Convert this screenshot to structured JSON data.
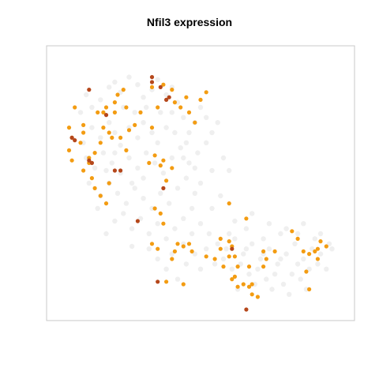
{
  "chart_data": {
    "type": "scatter",
    "title": "Nfil3 expression",
    "xlabel": "",
    "ylabel": "",
    "grid": false,
    "legend": "none",
    "xlim": [
      0,
      100
    ],
    "ylim": [
      0,
      100
    ],
    "colors": {
      "background_cells": "#e9e9e9",
      "low": "#f39c12",
      "high": "#b5471b",
      "frame": "#c8c8c8"
    },
    "series": [
      {
        "level": "none",
        "points": [
          [
            10,
            85
          ],
          [
            12,
            80
          ],
          [
            15,
            83
          ],
          [
            18,
            88
          ],
          [
            20,
            90
          ],
          [
            22,
            86
          ],
          [
            25,
            92
          ],
          [
            28,
            89
          ],
          [
            30,
            84
          ],
          [
            33,
            87
          ],
          [
            35,
            91
          ],
          [
            38,
            85
          ],
          [
            40,
            88
          ],
          [
            12,
            72
          ],
          [
            15,
            68
          ],
          [
            18,
            74
          ],
          [
            20,
            70
          ],
          [
            22,
            65
          ],
          [
            25,
            72
          ],
          [
            28,
            68
          ],
          [
            30,
            74
          ],
          [
            33,
            70
          ],
          [
            35,
            66
          ],
          [
            38,
            72
          ],
          [
            40,
            78
          ],
          [
            42,
            82
          ],
          [
            44,
            76
          ],
          [
            46,
            70
          ],
          [
            48,
            74
          ],
          [
            50,
            80
          ],
          [
            52,
            76
          ],
          [
            10,
            60
          ],
          [
            13,
            56
          ],
          [
            16,
            62
          ],
          [
            19,
            58
          ],
          [
            22,
            54
          ],
          [
            25,
            60
          ],
          [
            28,
            56
          ],
          [
            31,
            62
          ],
          [
            34,
            58
          ],
          [
            37,
            54
          ],
          [
            40,
            60
          ],
          [
            43,
            64
          ],
          [
            46,
            58
          ],
          [
            49,
            62
          ],
          [
            52,
            66
          ],
          [
            54,
            70
          ],
          [
            56,
            74
          ],
          [
            15,
            45
          ],
          [
            18,
            50
          ],
          [
            21,
            46
          ],
          [
            24,
            42
          ],
          [
            27,
            48
          ],
          [
            30,
            44
          ],
          [
            33,
            40
          ],
          [
            36,
            46
          ],
          [
            39,
            42
          ],
          [
            42,
            48
          ],
          [
            45,
            52
          ],
          [
            48,
            46
          ],
          [
            20,
            35
          ],
          [
            23,
            38
          ],
          [
            26,
            32
          ],
          [
            29,
            36
          ],
          [
            32,
            30
          ],
          [
            35,
            34
          ],
          [
            38,
            28
          ],
          [
            41,
            32
          ],
          [
            44,
            36
          ],
          [
            47,
            40
          ],
          [
            50,
            34
          ],
          [
            53,
            30
          ],
          [
            56,
            26
          ],
          [
            59,
            24
          ],
          [
            62,
            28
          ],
          [
            65,
            22
          ],
          [
            68,
            26
          ],
          [
            71,
            20
          ],
          [
            74,
            24
          ],
          [
            77,
            18
          ],
          [
            80,
            22
          ],
          [
            83,
            26
          ],
          [
            86,
            20
          ],
          [
            89,
            24
          ],
          [
            92,
            22
          ],
          [
            95,
            26
          ],
          [
            58,
            20
          ],
          [
            61,
            16
          ],
          [
            64,
            18
          ],
          [
            67,
            14
          ],
          [
            70,
            16
          ],
          [
            73,
            12
          ],
          [
            76,
            14
          ],
          [
            79,
            10
          ],
          [
            82,
            14
          ],
          [
            85,
            12
          ],
          [
            88,
            16
          ],
          [
            91,
            18
          ],
          [
            60,
            30
          ],
          [
            66,
            32
          ],
          [
            72,
            28
          ],
          [
            78,
            30
          ],
          [
            84,
            30
          ],
          [
            90,
            28
          ],
          [
            35,
            20
          ],
          [
            38,
            16
          ],
          [
            40,
            22
          ],
          [
            42,
            12
          ],
          [
            45,
            18
          ],
          [
            48,
            22
          ],
          [
            50,
            16
          ],
          [
            52,
            24
          ],
          [
            55,
            18
          ],
          [
            8,
            78
          ],
          [
            9,
            66
          ],
          [
            11,
            50
          ],
          [
            14,
            40
          ],
          [
            17,
            30
          ],
          [
            26,
            25
          ],
          [
            32,
            24
          ],
          [
            44,
            26
          ],
          [
            47,
            30
          ],
          [
            54,
            40
          ],
          [
            57,
            45
          ],
          [
            60,
            55
          ],
          [
            58,
            60
          ],
          [
            54,
            55
          ],
          [
            50,
            50
          ],
          [
            48,
            56
          ],
          [
            44,
            60
          ],
          [
            30,
            52
          ],
          [
            26,
            50
          ],
          [
            23,
            80
          ],
          [
            27,
            78
          ],
          [
            31,
            80
          ],
          [
            36,
            78
          ],
          [
            41,
            70
          ],
          [
            45,
            66
          ],
          [
            20,
            62
          ],
          [
            17,
            55
          ],
          [
            62,
            35
          ],
          [
            68,
            38
          ],
          [
            74,
            34
          ],
          [
            80,
            32
          ],
          [
            86,
            34
          ],
          [
            92,
            30
          ],
          [
            96,
            24
          ],
          [
            94,
            16
          ],
          [
            87,
            8
          ],
          [
            81,
            6
          ],
          [
            75,
            8
          ],
          [
            69,
            10
          ],
          [
            63,
            8
          ],
          [
            66,
            24
          ],
          [
            72,
            22
          ],
          [
            78,
            20
          ],
          [
            84,
            18
          ]
        ]
      },
      {
        "level": "low",
        "points": [
          [
            4,
            63
          ],
          [
            5,
            68
          ],
          [
            4,
            72
          ],
          [
            6,
            80
          ],
          [
            5,
            59
          ],
          [
            8,
            66
          ],
          [
            9,
            70
          ],
          [
            9,
            55
          ],
          [
            11,
            58
          ],
          [
            12,
            52
          ],
          [
            13,
            48
          ],
          [
            11,
            60
          ],
          [
            13,
            62
          ],
          [
            15,
            66
          ],
          [
            16,
            72
          ],
          [
            16,
            78
          ],
          [
            18,
            70
          ],
          [
            14,
            78
          ],
          [
            17,
            80
          ],
          [
            20,
            78
          ],
          [
            19,
            68
          ],
          [
            22,
            68
          ],
          [
            24,
            63
          ],
          [
            25,
            71
          ],
          [
            27,
            73
          ],
          [
            29,
            78
          ],
          [
            33,
            72
          ],
          [
            32,
            58
          ],
          [
            34,
            61
          ],
          [
            36,
            57
          ],
          [
            37,
            59
          ],
          [
            38,
            51
          ],
          [
            40,
            56
          ],
          [
            33,
            88
          ],
          [
            37,
            89
          ],
          [
            40,
            87
          ],
          [
            41,
            82
          ],
          [
            43,
            80
          ],
          [
            45,
            84
          ],
          [
            46,
            78
          ],
          [
            48,
            74
          ],
          [
            50,
            83
          ],
          [
            52,
            86
          ],
          [
            20,
            82
          ],
          [
            24,
            80
          ],
          [
            35,
            80
          ],
          [
            21,
            85
          ],
          [
            23,
            87
          ],
          [
            9,
            73
          ],
          [
            15,
            45
          ],
          [
            17,
            42
          ],
          [
            18,
            50
          ],
          [
            34,
            40
          ],
          [
            36,
            38
          ],
          [
            37,
            34
          ],
          [
            44,
            25
          ],
          [
            46,
            26
          ],
          [
            42,
            26
          ],
          [
            33,
            26
          ],
          [
            35,
            24
          ],
          [
            44,
            10
          ],
          [
            38,
            11
          ],
          [
            40,
            20
          ],
          [
            41,
            23
          ],
          [
            47,
            23
          ],
          [
            52,
            21
          ],
          [
            55,
            20
          ],
          [
            57,
            24
          ],
          [
            57,
            28
          ],
          [
            60,
            27
          ],
          [
            60,
            21
          ],
          [
            62,
            21
          ],
          [
            61,
            25
          ],
          [
            58,
            17
          ],
          [
            61,
            12
          ],
          [
            62,
            13
          ],
          [
            63,
            9
          ],
          [
            65,
            10
          ],
          [
            67,
            9
          ],
          [
            68,
            6
          ],
          [
            70,
            5
          ],
          [
            68,
            10
          ],
          [
            63,
            17
          ],
          [
            67,
            17
          ],
          [
            72,
            23
          ],
          [
            76,
            23
          ],
          [
            82,
            31
          ],
          [
            84,
            28
          ],
          [
            86,
            23
          ],
          [
            88,
            22
          ],
          [
            90,
            23
          ],
          [
            91,
            24
          ],
          [
            94,
            25
          ],
          [
            92,
            27
          ],
          [
            91,
            20
          ],
          [
            87,
            15
          ],
          [
            88,
            8
          ],
          [
            73,
            20
          ],
          [
            72,
            17
          ],
          [
            60,
            42
          ],
          [
            66,
            36
          ]
        ]
      },
      {
        "level": "high",
        "points": [
          [
            33,
            90
          ],
          [
            33,
            92
          ],
          [
            36,
            88
          ],
          [
            38,
            83
          ],
          [
            39,
            84
          ],
          [
            11,
            87
          ],
          [
            17,
            77
          ],
          [
            5,
            68
          ],
          [
            6,
            67
          ],
          [
            11,
            59
          ],
          [
            12,
            58
          ],
          [
            20,
            55
          ],
          [
            22,
            55
          ],
          [
            37,
            48
          ],
          [
            28,
            35
          ],
          [
            61,
            24
          ],
          [
            66,
            0
          ],
          [
            35,
            11
          ]
        ]
      }
    ]
  }
}
